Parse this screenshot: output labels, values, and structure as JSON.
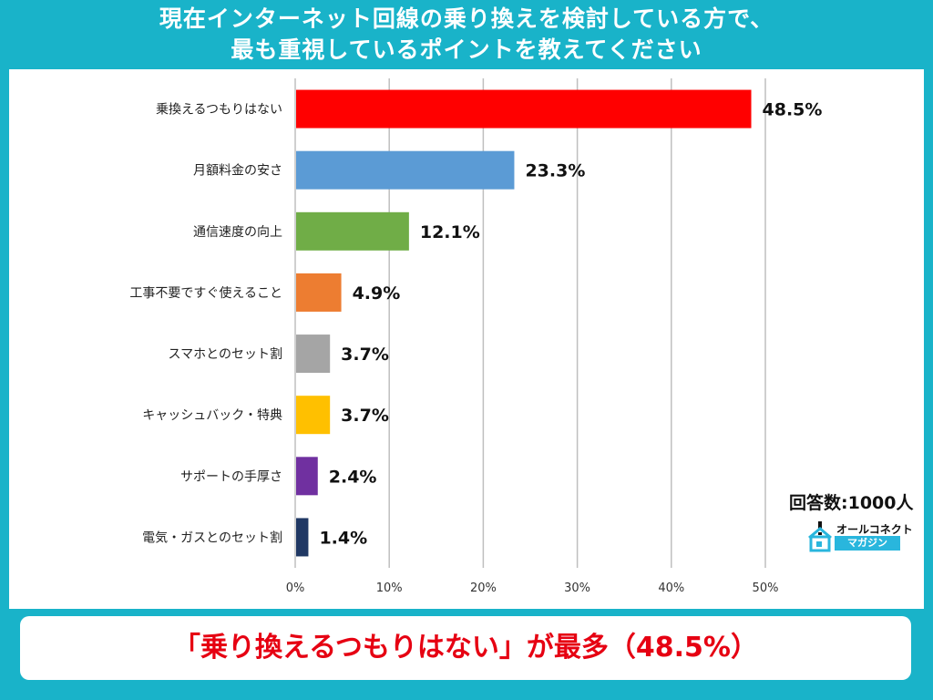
{
  "title": {
    "line1": "現在インターネット回線の乗り換えを検討している方で、",
    "line2": "最も重視しているポイントを教えてください"
  },
  "respondents": "回答数:1000人",
  "brand": {
    "name": "オールコネクト",
    "sub": "マガジン",
    "icon": "house-logo-icon"
  },
  "footer": "「乗り換えるつもりはない」が最多（48.5%）",
  "chart_data": {
    "type": "bar",
    "orientation": "horizontal",
    "categories": [
      "乗換えるつもりはない",
      "月額料金の安さ",
      "通信速度の向上",
      "工事不要ですぐ使えること",
      "スマホとのセット割",
      "キャッシュバック・特典",
      "サポートの手厚さ",
      "電気・ガスとのセット割"
    ],
    "values": [
      48.5,
      23.3,
      12.1,
      4.9,
      3.7,
      3.7,
      2.4,
      1.4
    ],
    "value_labels": [
      "48.5%",
      "23.3%",
      "12.1%",
      "4.9%",
      "3.7%",
      "3.7%",
      "2.4%",
      "1.4%"
    ],
    "colors": [
      "#ff0000",
      "#5b9bd5",
      "#70ad47",
      "#ed7d31",
      "#a5a5a5",
      "#ffc000",
      "#7030a0",
      "#203864"
    ],
    "xlim": [
      0,
      50
    ],
    "xticks": [
      0,
      10,
      20,
      30,
      40,
      50
    ],
    "xtick_labels": [
      "0%",
      "10%",
      "20%",
      "30%",
      "40%",
      "50%"
    ],
    "grid": true
  }
}
